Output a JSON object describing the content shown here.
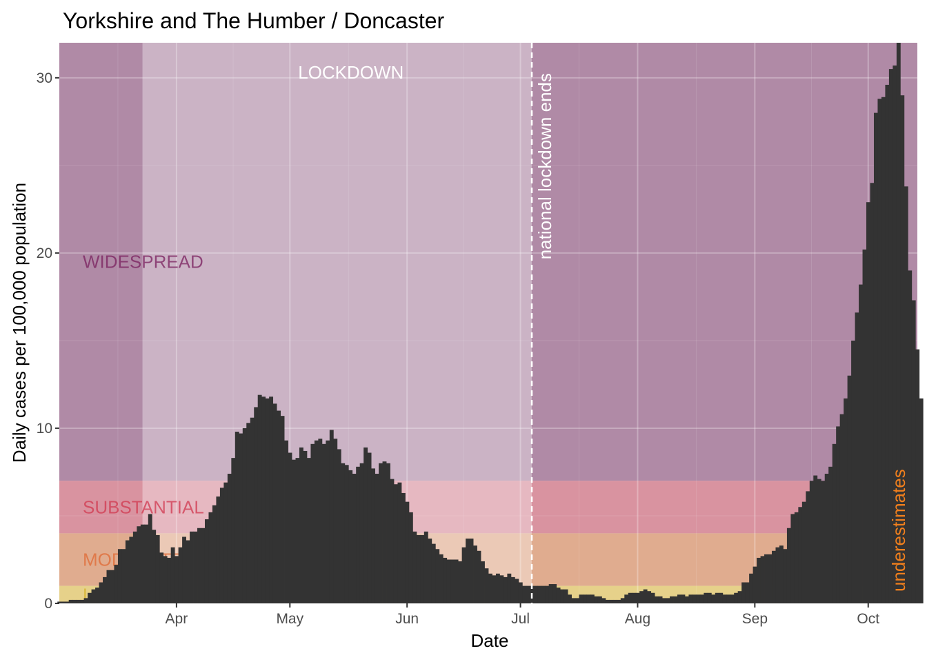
{
  "chart_data": {
    "type": "bar",
    "title": "Yorkshire and The Humber / Doncaster",
    "xlabel": "Date",
    "ylabel": "Daily cases per 100,000 population",
    "xlim": [
      "2020-03-01",
      "2020-10-14"
    ],
    "ylim": [
      0,
      32
    ],
    "y_ticks": [
      0,
      10,
      20,
      30
    ],
    "x_ticks": [
      {
        "date": "2020-04-01",
        "label": "Apr"
      },
      {
        "date": "2020-05-01",
        "label": "May"
      },
      {
        "date": "2020-06-01",
        "label": "Jun"
      },
      {
        "date": "2020-07-01",
        "label": "Jul"
      },
      {
        "date": "2020-08-01",
        "label": "Aug"
      },
      {
        "date": "2020-09-01",
        "label": "Sep"
      },
      {
        "date": "2020-10-01",
        "label": "Oct"
      }
    ],
    "grid": true,
    "bar_color": "#333333",
    "bands": [
      {
        "label": "WIDESPREAD",
        "from": 7,
        "to": 32,
        "color": "#b08aa6",
        "text_color": "#7a1f5e"
      },
      {
        "label": "SUBSTANTIAL",
        "from": 4,
        "to": 7,
        "color": "#d993a0",
        "text_color": "#d0384f"
      },
      {
        "label": "MODERATE",
        "from": 1,
        "to": 4,
        "color": "#e0ac8f",
        "text_color": "#e06a34"
      },
      {
        "label": "LOW",
        "from": 0,
        "to": 1,
        "color": "#e6d18a",
        "text_color": "#d4b02a"
      }
    ],
    "lockdown": {
      "label": "LOCKDOWN",
      "start": "2020-03-23",
      "end": "2020-07-04",
      "color": "#ffffff"
    },
    "vline": {
      "date": "2020-07-04",
      "label": "national lockdown ends",
      "color": "#ffffff"
    },
    "recent": {
      "start": "2020-10-14",
      "label": "underestimates",
      "color": "#f07f1d"
    },
    "start_date": "2020-03-01",
    "values": [
      0.1,
      0.1,
      0.1,
      0.2,
      0.2,
      0.2,
      0.2,
      0.3,
      0.6,
      0.8,
      0.9,
      1.2,
      1.5,
      1.9,
      1.9,
      2.2,
      3.1,
      3.1,
      3.6,
      3.8,
      4.1,
      4.4,
      4.5,
      4.5,
      5.1,
      4.2,
      3.9,
      2.9,
      2.7,
      2.6,
      3.2,
      2.7,
      3.2,
      3.8,
      3.6,
      4.1,
      4.1,
      4.3,
      4.3,
      4.8,
      5.2,
      5.6,
      6.1,
      6.6,
      6.9,
      7.4,
      8.3,
      9.8,
      9.7,
      10.0,
      10.3,
      10.6,
      11.2,
      11.9,
      11.8,
      11.7,
      11.8,
      11.4,
      11.0,
      10.7,
      9.3,
      8.6,
      8.2,
      8.3,
      8.9,
      8.7,
      8.3,
      9.1,
      9.3,
      9.4,
      9.1,
      9.3,
      9.9,
      9.4,
      8.8,
      8.0,
      7.9,
      7.6,
      7.4,
      7.8,
      8.0,
      8.9,
      8.6,
      7.7,
      7.4,
      8.0,
      8.1,
      8.0,
      7.1,
      6.8,
      6.9,
      6.3,
      5.8,
      5.2,
      4.1,
      3.9,
      3.9,
      4.1,
      3.7,
      3.4,
      3.1,
      2.8,
      2.6,
      2.5,
      2.5,
      2.5,
      2.4,
      3.2,
      3.7,
      3.7,
      3.3,
      3.0,
      2.4,
      2.0,
      1.7,
      1.6,
      1.7,
      1.6,
      1.5,
      1.7,
      1.5,
      1.4,
      1.2,
      1.0,
      1.0,
      1.0,
      1.0,
      1.0,
      1.0,
      1.0,
      1.1,
      1.1,
      0.9,
      0.8,
      0.8,
      0.5,
      0.3,
      0.3,
      0.5,
      0.5,
      0.5,
      0.5,
      0.4,
      0.4,
      0.3,
      0.2,
      0.2,
      0.2,
      0.2,
      0.3,
      0.5,
      0.6,
      0.6,
      0.6,
      0.7,
      0.8,
      0.7,
      0.6,
      0.4,
      0.4,
      0.3,
      0.3,
      0.4,
      0.4,
      0.5,
      0.5,
      0.4,
      0.5,
      0.5,
      0.5,
      0.5,
      0.6,
      0.6,
      0.5,
      0.6,
      0.6,
      0.5,
      0.5,
      0.5,
      0.6,
      0.7,
      1.2,
      1.2,
      1.7,
      2.1,
      2.6,
      2.7,
      2.8,
      2.8,
      3.0,
      3.2,
      3.3,
      3.1,
      4.3,
      5.1,
      5.2,
      5.5,
      5.8,
      6.4,
      7.0,
      7.3,
      7.1,
      7.0,
      7.4,
      7.8,
      9.1,
      10.1,
      10.8,
      11.7,
      13.0,
      15.0,
      16.6,
      18.2,
      20.2,
      22.9,
      24.0,
      28.0,
      28.8,
      28.9,
      29.6,
      30.5,
      30.7,
      32.0,
      29.0,
      23.8,
      19.0,
      17.3,
      14.5,
      11.7
    ]
  }
}
